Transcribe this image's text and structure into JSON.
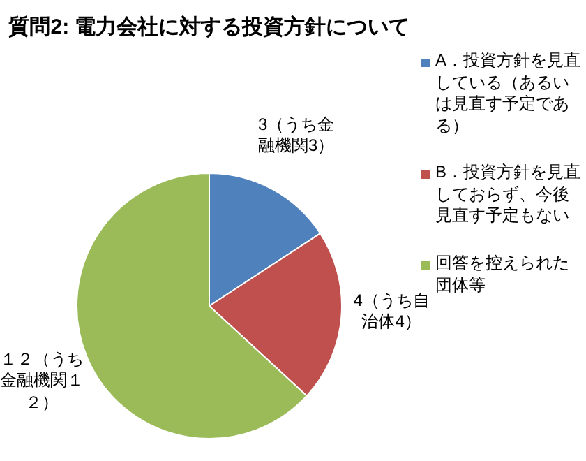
{
  "chart_data": {
    "type": "pie",
    "title": "質問2: 電力会社に対する投資方針について",
    "categories": [
      "A．投資方針を見直している（あるいは見直す予定である）",
      "B．投資方針を見直しておらず、今後見直す予定もない",
      "回答を控えられた団体等"
    ],
    "values": [
      3,
      4,
      12
    ],
    "colors": [
      "#4f81bd",
      "#c0504d",
      "#9bbb59"
    ],
    "value_labels": [
      "3（うち金融機関3）",
      "4（うち自治体4）",
      "１２（うち金融機関１２）"
    ],
    "legend": "right"
  }
}
